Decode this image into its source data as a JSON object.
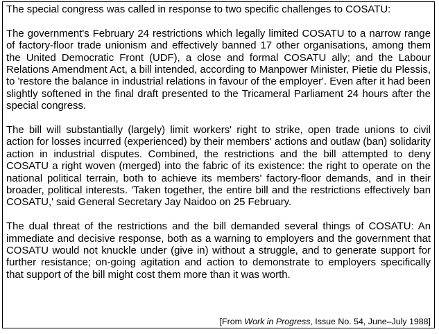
{
  "intro": "The special congress was called in response to two specific challenges to COSATU:",
  "paragraphs": [
    "The government's February 24 restrictions which legally limited COSATU to a narrow range of factory-floor trade unionism and effectively banned 17 other organisations, among them the United Democratic Front (UDF), a close and formal COSATU ally; and the Labour Relations Amendment Act, a bill intended, according to Manpower Minister, Pietie du Plessis, to 'restore the balance in industrial relations in favour of the employer'. Even after it had been slightly softened in the final draft presented to the Tricameral Parliament 24 hours after the special congress.",
    "The bill will substantially (largely) limit workers' right to strike, open trade unions to civil action for losses incurred (experienced) by their members' actions and outlaw (ban) solidarity action in industrial disputes. Combined, the restrictions and the bill attempted to deny COSATU a right woven (merged) into the fabric of its existence: the right to operate on the national political terrain, both to achieve its members' factory-floor demands, and in their broader, political interests. 'Taken together, the entire bill and the restrictions effectively ban COSATU,' said General Secretary Jay Naidoo on 25 February.",
    "The dual threat of the restrictions and the bill demanded several things of COSATU: An immediate and decisive response, both as a warning to employers and the government that COSATU would not knuckle under (give in) without a struggle, and to generate support for further resistance; on-going agitation and action to demonstrate to employers specifically that support of the bill might cost them more than it was worth."
  ],
  "source": {
    "prefix": "[From ",
    "title": "Work in Progress",
    "suffix": ", Issue No. 54, June–July 1988]"
  }
}
